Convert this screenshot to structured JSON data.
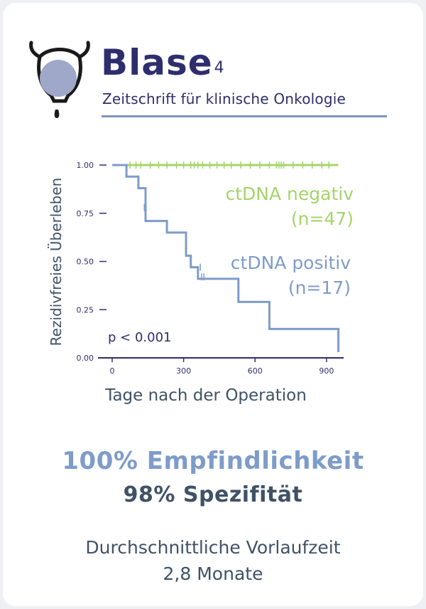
{
  "brand": {
    "name": "Blase",
    "superscript": "4",
    "subtitle": "Zeitschrift für klinische Onkologie"
  },
  "colors": {
    "navy": "#2e2e6e",
    "green": "#a5d46a",
    "blue": "#7e9cc9",
    "slate": "#3f5266"
  },
  "chart_data": {
    "type": "line",
    "subtype": "kaplan-meier",
    "xlabel": "Tage nach der Operation",
    "ylabel": "Rezidivfreies Überleben",
    "xlim": [
      0,
      960
    ],
    "ylim": [
      0,
      1
    ],
    "xticks": [
      0,
      300,
      600,
      900
    ],
    "yticks": [
      0.0,
      0.25,
      0.5,
      0.75,
      1.0
    ],
    "xtick_labels": [
      "0",
      "300",
      "600",
      "900"
    ],
    "ytick_labels": [
      "0.00",
      "0.25",
      "0.50",
      "0.75",
      "1.00"
    ],
    "annotation": "p < 0.001",
    "series": [
      {
        "name": "ctDNA negativ",
        "n_label": "(n=47)",
        "color": "#a5d46a",
        "steps": [
          [
            0,
            1.0
          ],
          [
            950,
            1.0
          ]
        ],
        "censors": [
          75,
          100,
          120,
          160,
          195,
          230,
          270,
          300,
          330,
          345,
          360,
          380,
          410,
          440,
          470,
          500,
          540,
          580,
          620,
          660,
          690,
          700,
          710,
          720,
          760,
          800,
          840,
          880,
          910
        ]
      },
      {
        "name": "ctDNA positiv",
        "n_label": "(n=17)",
        "color": "#7e9cc9",
        "steps": [
          [
            0,
            1.0
          ],
          [
            60,
            1.0
          ],
          [
            60,
            0.94
          ],
          [
            110,
            0.94
          ],
          [
            110,
            0.88
          ],
          [
            140,
            0.88
          ],
          [
            140,
            0.71
          ],
          [
            230,
            0.71
          ],
          [
            230,
            0.65
          ],
          [
            310,
            0.65
          ],
          [
            310,
            0.53
          ],
          [
            330,
            0.53
          ],
          [
            330,
            0.47
          ],
          [
            360,
            0.47
          ],
          [
            360,
            0.41
          ],
          [
            530,
            0.41
          ],
          [
            530,
            0.29
          ],
          [
            660,
            0.29
          ],
          [
            660,
            0.15
          ],
          [
            950,
            0.15
          ],
          [
            950,
            0.03
          ]
        ],
        "censors": [
          [
            135,
            0.78
          ],
          [
            310,
            0.56
          ],
          [
            370,
            0.47
          ],
          [
            375,
            0.42
          ],
          [
            385,
            0.42
          ]
        ]
      }
    ]
  }
}
